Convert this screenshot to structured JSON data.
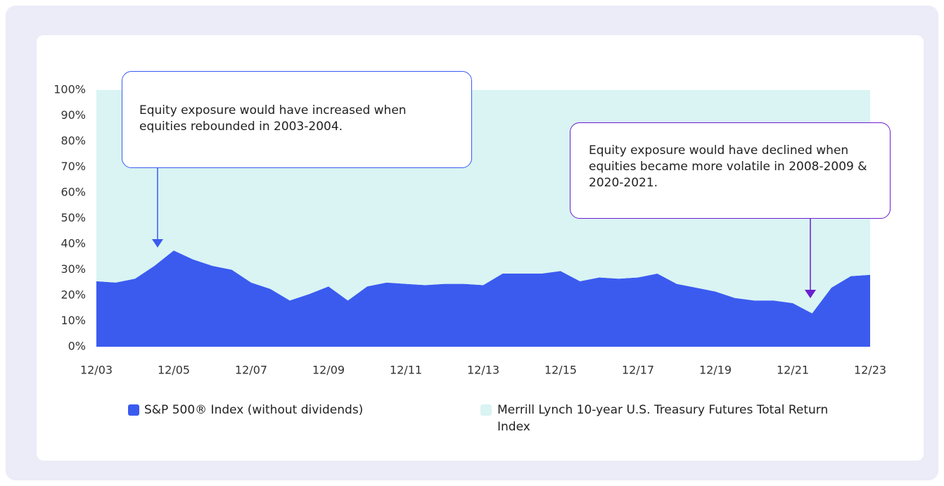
{
  "chart_data": {
    "type": "stacked-area",
    "categories": [
      "12/03",
      null,
      null,
      null,
      "12/05",
      null,
      null,
      null,
      "12/07",
      null,
      null,
      null,
      "12/09",
      null,
      null,
      null,
      "12/11",
      null,
      null,
      null,
      "12/13",
      null,
      null,
      null,
      "12/15",
      null,
      null,
      null,
      "12/17",
      null,
      null,
      null,
      "12/19",
      null,
      null,
      null,
      "12/21",
      null,
      null,
      null,
      "12/23"
    ],
    "series": [
      {
        "name": "S&P 500® Index (without dividends)",
        "color": "#3b5bef",
        "values": [
          25.5,
          25,
          26.5,
          31.5,
          37.5,
          34,
          31.5,
          30,
          25,
          22.5,
          18,
          20.5,
          23.5,
          18,
          23.5,
          25,
          24.5,
          24,
          24.5,
          24.5,
          24,
          28.5,
          28.5,
          28.5,
          29.5,
          25.5,
          27,
          26.5,
          27,
          28.5,
          24.5,
          23,
          21.5,
          19,
          18,
          18,
          17,
          13,
          23,
          27.5,
          28
        ]
      },
      {
        "name": "Merrill Lynch 10-year U.S. Treasury Futures Total Return Index",
        "color": "#d9f4f3",
        "values": [
          74.5,
          75,
          73.5,
          68.5,
          62.5,
          66,
          68.5,
          70,
          75,
          77.5,
          82,
          79.5,
          76.5,
          82,
          76.5,
          75,
          75.5,
          76,
          75.5,
          75.5,
          76,
          71.5,
          71.5,
          71.5,
          70.5,
          74.5,
          73,
          73.5,
          73,
          71.5,
          75.5,
          77,
          78.5,
          81,
          82,
          82,
          83,
          87,
          77,
          72.5,
          72
        ]
      }
    ],
    "ylim": [
      0,
      100
    ],
    "yticks": [
      {
        "value": 0,
        "label": "0%"
      },
      {
        "value": 10,
        "label": "10%"
      },
      {
        "value": 20,
        "label": "20%"
      },
      {
        "value": 30,
        "label": "30%"
      },
      {
        "value": 40,
        "label": "40%"
      },
      {
        "value": 50,
        "label": "50%"
      },
      {
        "value": 60,
        "label": "60%"
      },
      {
        "value": 70,
        "label": "70%"
      },
      {
        "value": 80,
        "label": "80%"
      },
      {
        "value": 90,
        "label": "90%"
      },
      {
        "value": 100,
        "label": "100%"
      }
    ],
    "annotations": [
      "Equity exposure would have increased when equities rebounded in 2003-2004.",
      "Equity exposure would have declined when equities became more volatile in 2008-2009 & 2020-2021."
    ]
  }
}
